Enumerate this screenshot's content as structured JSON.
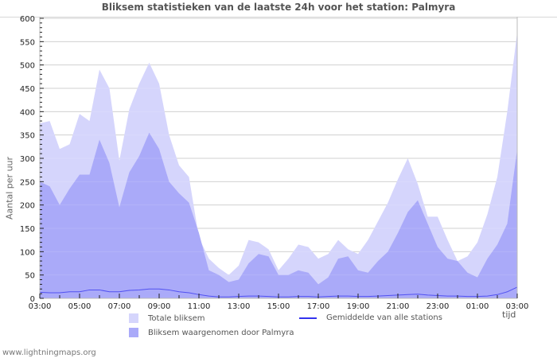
{
  "header": {
    "title": "Bliksem statistieken van de laatste 24h voor het station: Palmyra"
  },
  "axes": {
    "ylabel": "Aantal per uur",
    "xlabel": "tijd"
  },
  "legend": {
    "total": "Totale bliksem",
    "station": "Bliksem waargenomen door Palmyra",
    "average": "Gemiddelde van alle stations"
  },
  "footer": {
    "source": "www.lightningmaps.org"
  },
  "colors": {
    "total": "#d5d5fc",
    "station": "#aaaaf9",
    "average": "#3333ee",
    "grid": "#cccccc",
    "axis": "#bbbbbb"
  },
  "chart_data": {
    "type": "area",
    "title": "Bliksem statistieken van de laatste 24h voor het station: Palmyra",
    "xlabel": "tijd",
    "ylabel": "Aantal per uur",
    "ylim": [
      0,
      600
    ],
    "yticks": [
      0,
      50,
      100,
      150,
      200,
      250,
      300,
      350,
      400,
      450,
      500,
      550,
      600
    ],
    "xtick_labels": [
      "03:00",
      "05:00",
      "07:00",
      "09:00",
      "11:00",
      "13:00",
      "15:00",
      "17:00",
      "19:00",
      "21:00",
      "23:00",
      "01:00",
      "03:00"
    ],
    "grid": true,
    "legend_position": "bottom",
    "x": [
      "03:00",
      "03:30",
      "04:00",
      "04:30",
      "05:00",
      "05:30",
      "06:00",
      "06:30",
      "07:00",
      "07:30",
      "08:00",
      "08:30",
      "09:00",
      "09:30",
      "10:00",
      "10:30",
      "11:00",
      "11:30",
      "12:00",
      "12:30",
      "13:00",
      "13:30",
      "14:00",
      "14:30",
      "15:00",
      "15:30",
      "16:00",
      "16:30",
      "17:00",
      "17:30",
      "18:00",
      "18:30",
      "19:00",
      "19:30",
      "20:00",
      "20:30",
      "21:00",
      "21:30",
      "22:00",
      "22:30",
      "23:00",
      "23:30",
      "00:00",
      "00:30",
      "01:00",
      "01:30",
      "02:00",
      "02:30",
      "03:00"
    ],
    "series": [
      {
        "name": "Totale bliksem",
        "type": "area",
        "values": [
          375,
          380,
          320,
          330,
          395,
          380,
          490,
          450,
          295,
          405,
          460,
          505,
          460,
          350,
          285,
          260,
          130,
          85,
          65,
          50,
          70,
          125,
          120,
          105,
          60,
          85,
          115,
          110,
          85,
          95,
          125,
          105,
          95,
          125,
          165,
          205,
          255,
          300,
          245,
          175,
          175,
          125,
          80,
          90,
          120,
          180,
          260,
          400,
          570
        ]
      },
      {
        "name": "Bliksem waargenomen door Palmyra",
        "type": "area",
        "values": [
          250,
          240,
          200,
          235,
          265,
          265,
          340,
          290,
          195,
          270,
          305,
          355,
          320,
          250,
          225,
          205,
          140,
          60,
          50,
          35,
          40,
          75,
          95,
          90,
          50,
          50,
          60,
          55,
          30,
          45,
          85,
          90,
          60,
          55,
          80,
          100,
          140,
          185,
          210,
          160,
          110,
          85,
          80,
          55,
          45,
          85,
          115,
          160,
          320
        ]
      },
      {
        "name": "Gemiddelde van alle stations",
        "type": "line",
        "values": [
          13,
          12,
          12,
          14,
          14,
          18,
          18,
          14,
          14,
          17,
          18,
          20,
          20,
          18,
          14,
          12,
          8,
          5,
          3,
          3,
          4,
          5,
          5,
          4,
          3,
          3,
          4,
          4,
          3,
          4,
          5,
          5,
          4,
          4,
          5,
          6,
          7,
          8,
          9,
          7,
          6,
          5,
          5,
          4,
          4,
          5,
          8,
          14,
          24
        ]
      }
    ]
  }
}
